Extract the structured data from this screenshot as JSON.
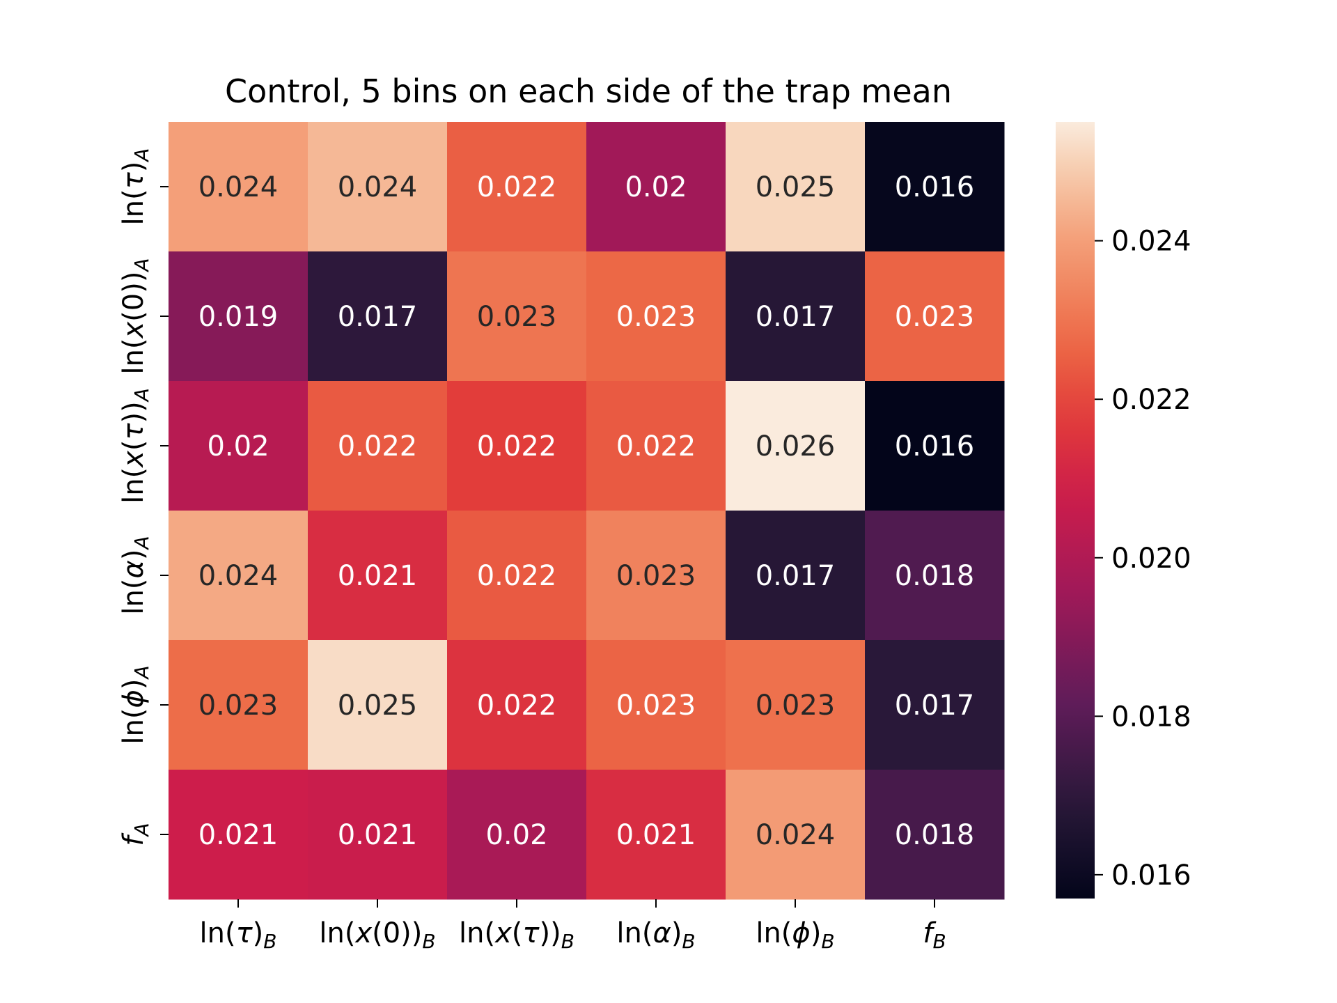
{
  "chart_data": {
    "type": "heatmap",
    "title": "Control, 5 bins on each side of the trap mean",
    "x_labels": [
      {
        "base": "ln(τ)",
        "sub": "B"
      },
      {
        "base": "ln(x(0))",
        "sub": "B"
      },
      {
        "base": "ln(x(τ))",
        "sub": "B"
      },
      {
        "base": "ln(α)",
        "sub": "B"
      },
      {
        "base": "ln(ϕ)",
        "sub": "B"
      },
      {
        "base": "f",
        "sub": "B"
      }
    ],
    "y_labels": [
      {
        "base": "ln(τ)",
        "sub": "A"
      },
      {
        "base": "ln(x(0))",
        "sub": "A"
      },
      {
        "base": "ln(x(τ))",
        "sub": "A"
      },
      {
        "base": "ln(α)",
        "sub": "A"
      },
      {
        "base": "ln(ϕ)",
        "sub": "A"
      },
      {
        "base": "f",
        "sub": "A"
      }
    ],
    "values": [
      [
        0.024,
        0.0245,
        0.0225,
        0.0196,
        0.0251,
        0.0158
      ],
      [
        0.019,
        0.017,
        0.023,
        0.0227,
        0.0168,
        0.0226
      ],
      [
        0.0202,
        0.0224,
        0.0218,
        0.0224,
        0.0255,
        0.0157
      ],
      [
        0.0242,
        0.0213,
        0.0224,
        0.0233,
        0.0168,
        0.0178
      ],
      [
        0.0228,
        0.0252,
        0.0215,
        0.0226,
        0.0229,
        0.0169
      ],
      [
        0.0208,
        0.0207,
        0.0198,
        0.0213,
        0.0239,
        0.0176
      ]
    ],
    "cell_labels": [
      [
        "0.024",
        "0.024",
        "0.022",
        "0.02",
        "0.025",
        "0.016"
      ],
      [
        "0.019",
        "0.017",
        "0.023",
        "0.023",
        "0.017",
        "0.023"
      ],
      [
        "0.02",
        "0.022",
        "0.022",
        "0.022",
        "0.026",
        "0.016"
      ],
      [
        "0.024",
        "0.021",
        "0.022",
        "0.023",
        "0.017",
        "0.018"
      ],
      [
        "0.023",
        "0.025",
        "0.022",
        "0.023",
        "0.023",
        "0.017"
      ],
      [
        "0.021",
        "0.021",
        "0.02",
        "0.021",
        "0.024",
        "0.018"
      ]
    ],
    "colorbar": {
      "min": 0.0157,
      "max": 0.0255,
      "ticks": [
        0.016,
        0.018,
        0.02,
        0.022,
        0.024
      ],
      "tick_labels": [
        "0.016",
        "0.018",
        "0.020",
        "0.022",
        "0.024"
      ]
    },
    "colormap": "rocket",
    "grid": false
  }
}
